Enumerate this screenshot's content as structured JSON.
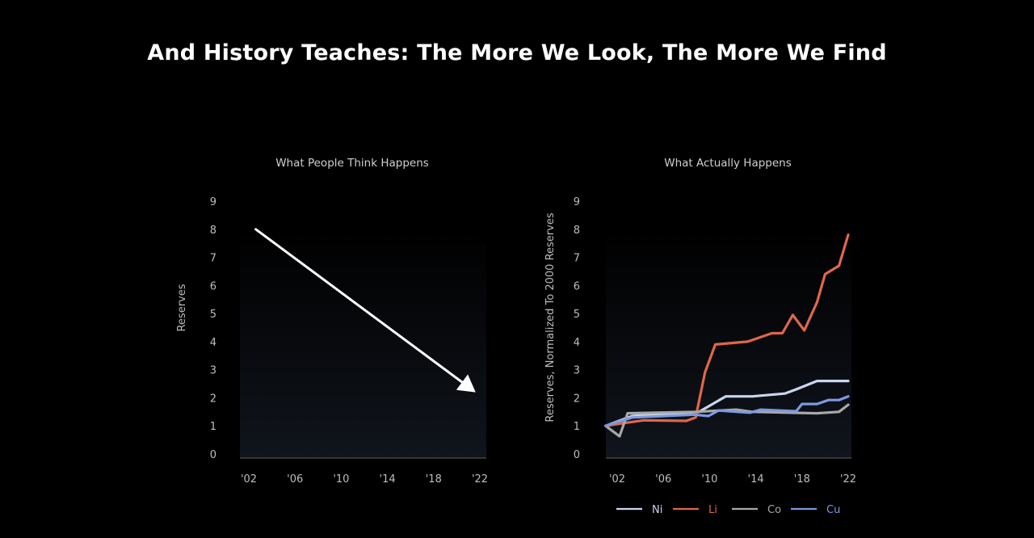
{
  "title": "And History Teaches: The More We Look, The More We Find",
  "chart_data": [
    {
      "type": "line",
      "title": "What People Think Happens",
      "ylabel": "Reserves",
      "xlabel": "",
      "xlim": [
        2001,
        2022.3
      ],
      "ylim": [
        0,
        9
      ],
      "yticks": [
        "0",
        "1",
        "2",
        "3",
        "4",
        "5",
        "6",
        "7",
        "8",
        "9"
      ],
      "xticks": [
        {
          "year": 2002,
          "label": "'02"
        },
        {
          "year": 2006,
          "label": "'06"
        },
        {
          "year": 2010,
          "label": "'10"
        },
        {
          "year": 2014,
          "label": "'14"
        },
        {
          "year": 2018,
          "label": "'18"
        },
        {
          "year": 2022,
          "label": "'22"
        }
      ],
      "series": [
        {
          "name": "arrow",
          "color": "#ffffff",
          "points": [
            [
              2002.6,
              8.0
            ],
            [
              2021.3,
              2.3
            ]
          ]
        }
      ]
    },
    {
      "type": "line",
      "title": "What Actually Happens",
      "ylabel": "Reserves, Normalized To 2000 Reserves",
      "xlabel": "",
      "xlim": [
        2001,
        2022.1
      ],
      "ylim": [
        0,
        9
      ],
      "yticks": [
        "0",
        "1",
        "2",
        "3",
        "4",
        "5",
        "6",
        "7",
        "8",
        "9"
      ],
      "xticks": [
        {
          "year": 2002,
          "label": "'02"
        },
        {
          "year": 2006,
          "label": "'06"
        },
        {
          "year": 2010,
          "label": "'10"
        },
        {
          "year": 2014,
          "label": "'14"
        },
        {
          "year": 2018,
          "label": "'18"
        },
        {
          "year": 2022,
          "label": "'22"
        }
      ],
      "legend_position": "bottom",
      "series": [
        {
          "name": "Ni",
          "color": "#c9d6ee",
          "points": [
            [
              2001,
              1.0
            ],
            [
              2003.3,
              1.35
            ],
            [
              2009.1,
              1.5
            ],
            [
              2011.4,
              2.05
            ],
            [
              2013.7,
              2.05
            ],
            [
              2016.5,
              2.15
            ],
            [
              2017.5,
              2.3
            ],
            [
              2019.3,
              2.6
            ],
            [
              2022,
              2.6
            ]
          ]
        },
        {
          "name": "Li",
          "color": "#e0674a",
          "points": [
            [
              2001,
              1.0
            ],
            [
              2002.6,
              1.1
            ],
            [
              2004.3,
              1.2
            ],
            [
              2008.0,
              1.18
            ],
            [
              2008.8,
              1.3
            ],
            [
              2009.6,
              2.9
            ],
            [
              2010.5,
              3.9
            ],
            [
              2013.3,
              4.0
            ],
            [
              2015.4,
              4.3
            ],
            [
              2016.3,
              4.3
            ],
            [
              2017.2,
              4.95
            ],
            [
              2018.2,
              4.4
            ],
            [
              2019.3,
              5.4
            ],
            [
              2020.0,
              6.4
            ],
            [
              2021.2,
              6.7
            ],
            [
              2022.0,
              7.8
            ]
          ]
        },
        {
          "name": "Co",
          "color": "#a8a8a8",
          "points": [
            [
              2001,
              1.0
            ],
            [
              2002.2,
              0.63
            ],
            [
              2002.9,
              1.45
            ],
            [
              2008.9,
              1.5
            ],
            [
              2012.3,
              1.58
            ],
            [
              2013.7,
              1.5
            ],
            [
              2019.3,
              1.45
            ],
            [
              2021.2,
              1.5
            ],
            [
              2022.0,
              1.75
            ]
          ]
        },
        {
          "name": "Cu",
          "color": "#7d99e0",
          "points": [
            [
              2001,
              1.0
            ],
            [
              2003.3,
              1.3
            ],
            [
              2008.7,
              1.4
            ],
            [
              2009.9,
              1.35
            ],
            [
              2010.8,
              1.55
            ],
            [
              2013.5,
              1.47
            ],
            [
              2014.4,
              1.58
            ],
            [
              2017.5,
              1.52
            ],
            [
              2018.0,
              1.78
            ],
            [
              2019.3,
              1.78
            ],
            [
              2020.3,
              1.92
            ],
            [
              2021.2,
              1.92
            ],
            [
              2022.0,
              2.05
            ]
          ]
        }
      ]
    }
  ]
}
